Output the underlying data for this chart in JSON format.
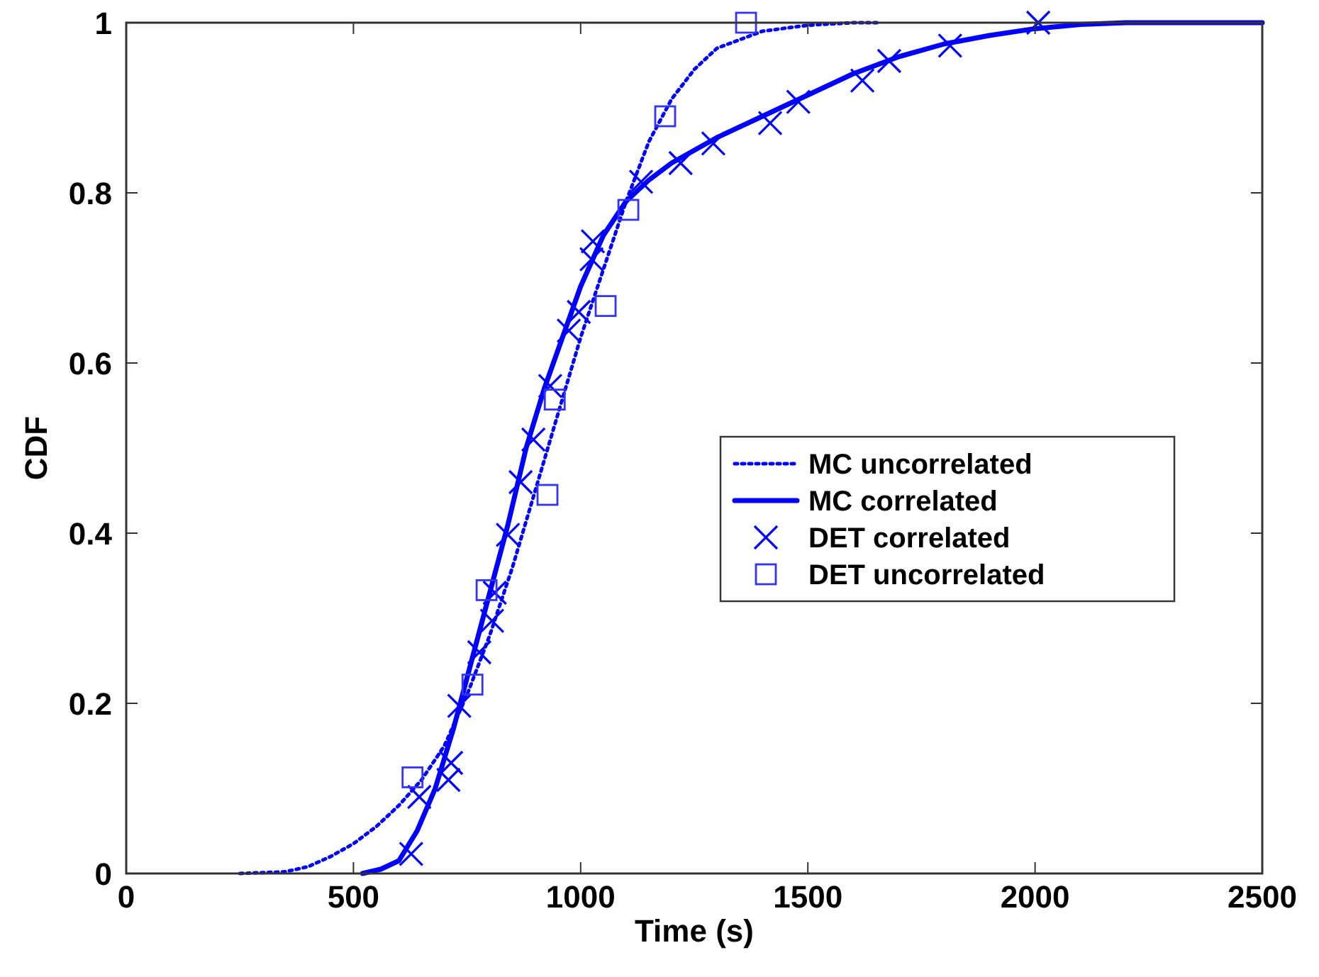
{
  "chart_data": {
    "type": "line",
    "xlabel": "Time (s)",
    "ylabel": "CDF",
    "xlim": [
      0,
      2500
    ],
    "ylim": [
      0,
      1
    ],
    "xticks": [
      0,
      500,
      1000,
      1500,
      2000,
      2500
    ],
    "yticks": [
      0,
      0.2,
      0.4,
      0.6,
      0.8,
      1
    ],
    "grid": false,
    "legend": "right",
    "series": [
      {
        "name": "MC uncorrelated",
        "line_style": "dotted",
        "color": "#0000ff",
        "x": [
          250,
          350,
          400,
          450,
          500,
          550,
          600,
          650,
          700,
          750,
          800,
          850,
          900,
          950,
          1000,
          1050,
          1100,
          1150,
          1200,
          1250,
          1300,
          1400,
          1500,
          1600,
          1660
        ],
        "values": [
          0,
          0.002,
          0.008,
          0.02,
          0.035,
          0.055,
          0.08,
          0.11,
          0.15,
          0.21,
          0.28,
          0.36,
          0.45,
          0.54,
          0.63,
          0.71,
          0.79,
          0.86,
          0.91,
          0.945,
          0.97,
          0.99,
          0.997,
          1,
          1
        ]
      },
      {
        "name": "MC correlated",
        "line_style": "solid",
        "color": "#0000ff",
        "x": [
          520,
          560,
          600,
          640,
          680,
          720,
          760,
          800,
          840,
          880,
          920,
          960,
          1000,
          1050,
          1100,
          1150,
          1200,
          1300,
          1400,
          1500,
          1600,
          1700,
          1800,
          1900,
          2000,
          2100,
          2200,
          2500
        ],
        "values": [
          0,
          0.005,
          0.015,
          0.05,
          0.1,
          0.17,
          0.25,
          0.33,
          0.41,
          0.5,
          0.57,
          0.63,
          0.69,
          0.75,
          0.79,
          0.815,
          0.835,
          0.865,
          0.89,
          0.915,
          0.94,
          0.96,
          0.975,
          0.985,
          0.993,
          0.998,
          1,
          1
        ]
      },
      {
        "name": "DET correlated",
        "type": "scatter",
        "marker": "cross",
        "color": "#0000ff",
        "x": [
          627,
          645,
          709,
          715,
          733,
          777,
          805,
          811,
          840,
          868,
          896,
          933,
          974,
          996,
          1027,
          1024,
          1133,
          1220,
          1292,
          1417,
          1479,
          1620,
          1679,
          1813,
          2007
        ],
        "values": [
          0.023,
          0.09,
          0.11,
          0.13,
          0.197,
          0.26,
          0.297,
          0.33,
          0.398,
          0.46,
          0.51,
          0.573,
          0.638,
          0.66,
          0.743,
          0.722,
          0.813,
          0.835,
          0.858,
          0.882,
          0.907,
          0.932,
          0.955,
          0.973,
          1
        ]
      },
      {
        "name": "DET uncorrelated",
        "type": "scatter",
        "marker": "square",
        "color": "#3333ff",
        "x": [
          630,
          762,
          793,
          927,
          943,
          1055,
          1105,
          1186,
          1364
        ],
        "values": [
          0.113,
          0.222,
          0.333,
          0.445,
          0.557,
          0.667,
          0.78,
          0.89,
          1
        ]
      }
    ]
  }
}
